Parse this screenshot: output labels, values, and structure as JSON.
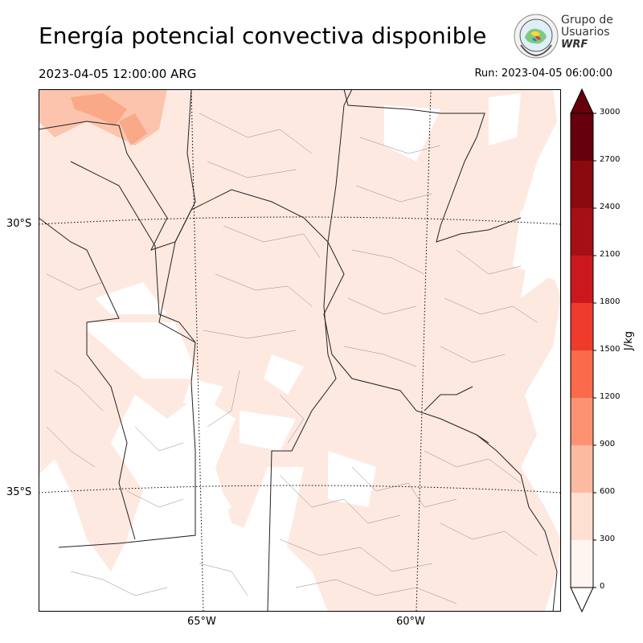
{
  "header": {
    "title": "Energía potencial convectiva disponible",
    "valid_time": "2023-04-05 12:00:00 ARG",
    "run_time": "Run: 2023-04-05 06:00:00"
  },
  "logo": {
    "line1": "Grupo de",
    "line2": "Usuarios",
    "line3": "WRF"
  },
  "map": {
    "lat_labels": [
      "30°S",
      "35°S"
    ],
    "lon_labels": [
      "65°W",
      "60°W"
    ],
    "field": "CAPE",
    "background_color": "#ffffff",
    "low_cape_color": "#fee9e1",
    "mid_cape_color": "#fbb9a0",
    "high_cape_color": "#f4916f"
  },
  "colorbar": {
    "unit": "J/kg",
    "ticks": [
      "0",
      "300",
      "600",
      "900",
      "1200",
      "1500",
      "1800",
      "2100",
      "2400",
      "2700",
      "3000"
    ],
    "colors": [
      "#fff5f0",
      "#fee0d2",
      "#fcbba1",
      "#fc9272",
      "#fb6a4a",
      "#ef3b2c",
      "#cb181d",
      "#a50f15",
      "#8b0a10",
      "#67000d"
    ],
    "extend_max_color": "#67000d"
  }
}
